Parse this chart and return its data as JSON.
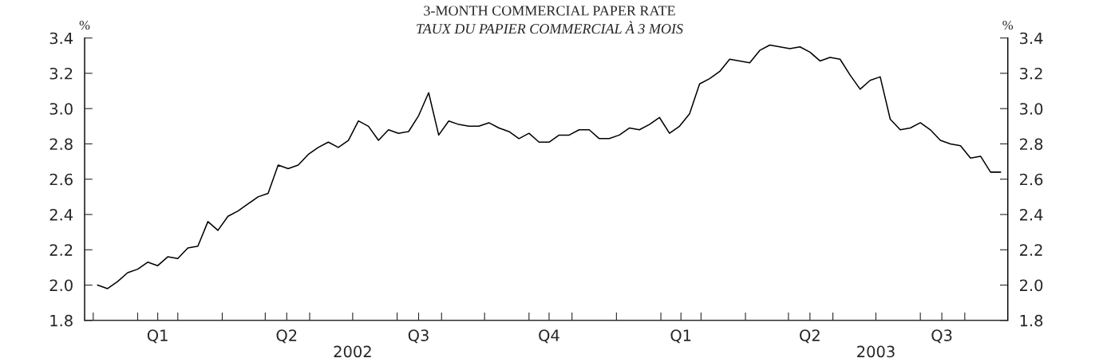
{
  "chart_data": {
    "type": "line",
    "title": "3-MONTH COMMERCIAL PAPER RATE",
    "subtitle": "TAUX DU PAPIER COMMERCIAL À 3 MOIS",
    "ylabel": "%",
    "y2label": "%",
    "x": [
      "2002-01-04",
      "2002-01-11",
      "2002-01-18",
      "2002-01-25",
      "2002-02-01",
      "2002-02-08",
      "2002-02-15",
      "2002-02-22",
      "2002-03-01",
      "2002-03-08",
      "2002-03-15",
      "2002-03-22",
      "2002-03-29",
      "2002-04-05",
      "2002-04-12",
      "2002-04-19",
      "2002-04-26",
      "2002-05-03",
      "2002-05-10",
      "2002-05-17",
      "2002-05-24",
      "2002-05-31",
      "2002-06-07",
      "2002-06-14",
      "2002-06-21",
      "2002-06-28",
      "2002-07-05",
      "2002-07-12",
      "2002-07-19",
      "2002-07-26",
      "2002-08-02",
      "2002-08-09",
      "2002-08-16",
      "2002-08-23",
      "2002-08-30",
      "2002-09-06",
      "2002-09-13",
      "2002-09-20",
      "2002-09-27",
      "2002-10-04",
      "2002-10-11",
      "2002-10-18",
      "2002-10-25",
      "2002-11-01",
      "2002-11-08",
      "2002-11-15",
      "2002-11-22",
      "2002-11-29",
      "2002-12-06",
      "2002-12-13",
      "2002-12-20",
      "2002-12-27",
      "2003-01-03",
      "2003-01-10",
      "2003-01-17",
      "2003-01-24",
      "2003-01-31",
      "2003-02-07",
      "2003-02-14",
      "2003-02-21",
      "2003-02-28",
      "2003-03-07",
      "2003-03-14",
      "2003-03-21",
      "2003-03-28",
      "2003-04-04",
      "2003-04-11",
      "2003-04-18",
      "2003-04-25",
      "2003-05-02",
      "2003-05-09",
      "2003-05-16",
      "2003-05-23",
      "2003-05-30",
      "2003-06-06",
      "2003-06-13",
      "2003-06-20",
      "2003-06-27",
      "2003-07-04",
      "2003-07-11",
      "2003-07-18",
      "2003-07-25",
      "2003-08-01",
      "2003-08-08",
      "2003-08-15",
      "2003-08-22",
      "2003-08-29",
      "2003-09-05",
      "2003-09-12",
      "2003-09-19",
      "2003-09-26"
    ],
    "series": [
      {
        "color": "#000000",
        "values": [
          2.0,
          1.98,
          2.02,
          2.07,
          2.09,
          2.13,
          2.11,
          2.16,
          2.15,
          2.21,
          2.22,
          2.36,
          2.31,
          2.39,
          2.42,
          2.46,
          2.5,
          2.52,
          2.68,
          2.66,
          2.68,
          2.74,
          2.78,
          2.81,
          2.78,
          2.82,
          2.93,
          2.9,
          2.82,
          2.88,
          2.86,
          2.87,
          2.96,
          3.09,
          2.85,
          2.93,
          2.91,
          2.9,
          2.9,
          2.92,
          2.89,
          2.87,
          2.83,
          2.86,
          2.81,
          2.81,
          2.85,
          2.85,
          2.88,
          2.88,
          2.83,
          2.83,
          2.85,
          2.89,
          2.88,
          2.91,
          2.95,
          2.86,
          2.9,
          2.97,
          3.14,
          3.17,
          3.21,
          3.28,
          3.27,
          3.26,
          3.33,
          3.36,
          3.35,
          3.34,
          3.35,
          3.32,
          3.27,
          3.29,
          3.28,
          3.19,
          3.11,
          3.16,
          3.18,
          2.94,
          2.88,
          2.89,
          2.92,
          2.88,
          2.82,
          2.8,
          2.79,
          2.72,
          2.73,
          2.64,
          2.64
        ]
      }
    ],
    "xlim": [
      "2001-12-26",
      "2003-10-01"
    ],
    "xticks": [
      {
        "value": "2002-01-01",
        "label": null
      },
      {
        "value": "2002-02-01",
        "label": null
      },
      {
        "value": "2002-02-15",
        "label": "Q1"
      },
      {
        "value": "2002-03-01",
        "label": null
      },
      {
        "value": "2002-04-01",
        "label": null
      },
      {
        "value": "2002-05-01",
        "label": null
      },
      {
        "value": "2002-05-16",
        "label": "Q2"
      },
      {
        "value": "2002-06-01",
        "label": null
      },
      {
        "value": "2002-07-01",
        "label": null
      },
      {
        "value": "2002-08-01",
        "label": null
      },
      {
        "value": "2002-08-16",
        "label": "Q3"
      },
      {
        "value": "2002-09-01",
        "label": null
      },
      {
        "value": "2002-10-01",
        "label": null
      },
      {
        "value": "2002-11-01",
        "label": null
      },
      {
        "value": "2002-11-15",
        "label": "Q4"
      },
      {
        "value": "2002-12-01",
        "label": null
      },
      {
        "value": "2003-01-01",
        "label": null
      },
      {
        "value": "2003-02-01",
        "label": null
      },
      {
        "value": "2003-02-15",
        "label": "Q1"
      },
      {
        "value": "2003-03-01",
        "label": null
      },
      {
        "value": "2003-04-01",
        "label": null
      },
      {
        "value": "2003-05-01",
        "label": null
      },
      {
        "value": "2003-05-16",
        "label": "Q2"
      },
      {
        "value": "2003-06-01",
        "label": null
      },
      {
        "value": "2003-07-01",
        "label": null
      },
      {
        "value": "2003-08-01",
        "label": null
      },
      {
        "value": "2003-08-16",
        "label": "Q3"
      },
      {
        "value": "2003-09-01",
        "label": null
      }
    ],
    "x2lim": [
      "2001-12-26",
      "2003-10-01"
    ],
    "x2ticks": [
      {
        "value": "2002-07-01",
        "label": "2002"
      },
      {
        "value": "2003-07-01",
        "label": "2003"
      }
    ],
    "ylim": [
      1.8,
      3.4
    ],
    "yticks": [
      {
        "value": 1.8,
        "label": "1.8"
      },
      {
        "value": 2.0,
        "label": "2.0"
      },
      {
        "value": 2.2,
        "label": "2.2"
      },
      {
        "value": 2.4,
        "label": "2.4"
      },
      {
        "value": 2.6,
        "label": "2.6"
      },
      {
        "value": 2.8,
        "label": "2.8"
      },
      {
        "value": 3.0,
        "label": "3.0"
      },
      {
        "value": 3.2,
        "label": "3.2"
      },
      {
        "value": 3.4,
        "label": "3.4"
      }
    ],
    "y2lim": [
      1.8,
      3.4
    ],
    "y2ticks": [
      {
        "value": 1.8,
        "label": "1.8"
      },
      {
        "value": 2.0,
        "label": "2.0"
      },
      {
        "value": 2.2,
        "label": "2.2"
      },
      {
        "value": 2.4,
        "label": "2.4"
      },
      {
        "value": 2.6,
        "label": "2.6"
      },
      {
        "value": 2.8,
        "label": "2.8"
      },
      {
        "value": 3.0,
        "label": "3.0"
      },
      {
        "value": 3.2,
        "label": "3.2"
      },
      {
        "value": 3.4,
        "label": "3.4"
      }
    ],
    "grid": false,
    "legend": false
  }
}
